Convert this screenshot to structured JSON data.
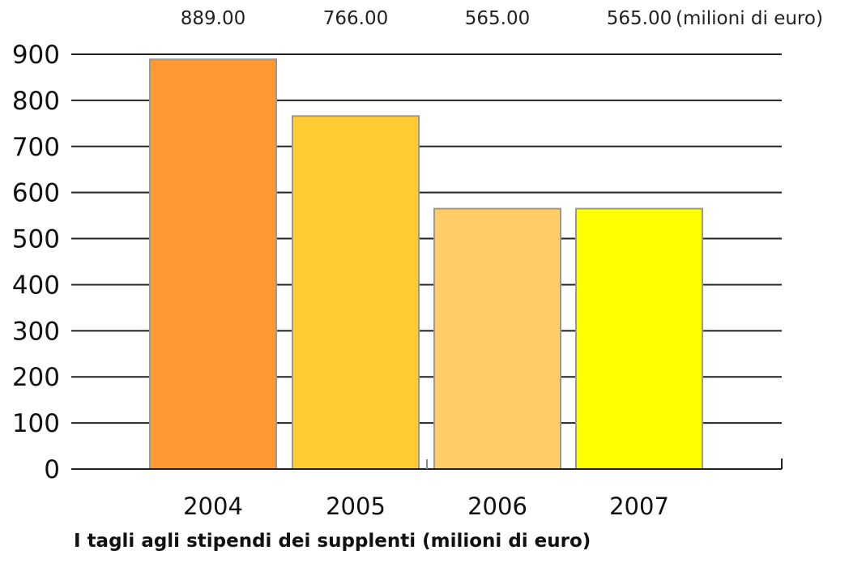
{
  "chart_data": {
    "type": "bar",
    "title": "I tagli agli stipendi dei supplenti (milioni di euro)",
    "xlabel": "",
    "ylabel": "",
    "categories": [
      "2004",
      "2005",
      "2006",
      "2007"
    ],
    "values": [
      889,
      766,
      565,
      565
    ],
    "value_labels": [
      "889.00",
      "766.00",
      "565.00",
      "565.00"
    ],
    "value_unit_label": "(milioni di euro)",
    "bar_colors": [
      "#FF9933",
      "#FFCC33",
      "#FFCC66",
      "#FFFF00"
    ],
    "bar_stroke": "#999999",
    "ylim": [
      0,
      900
    ],
    "yticks": [
      0,
      100,
      200,
      300,
      400,
      500,
      600,
      700,
      800,
      900
    ],
    "grid": true,
    "legend": "none"
  }
}
